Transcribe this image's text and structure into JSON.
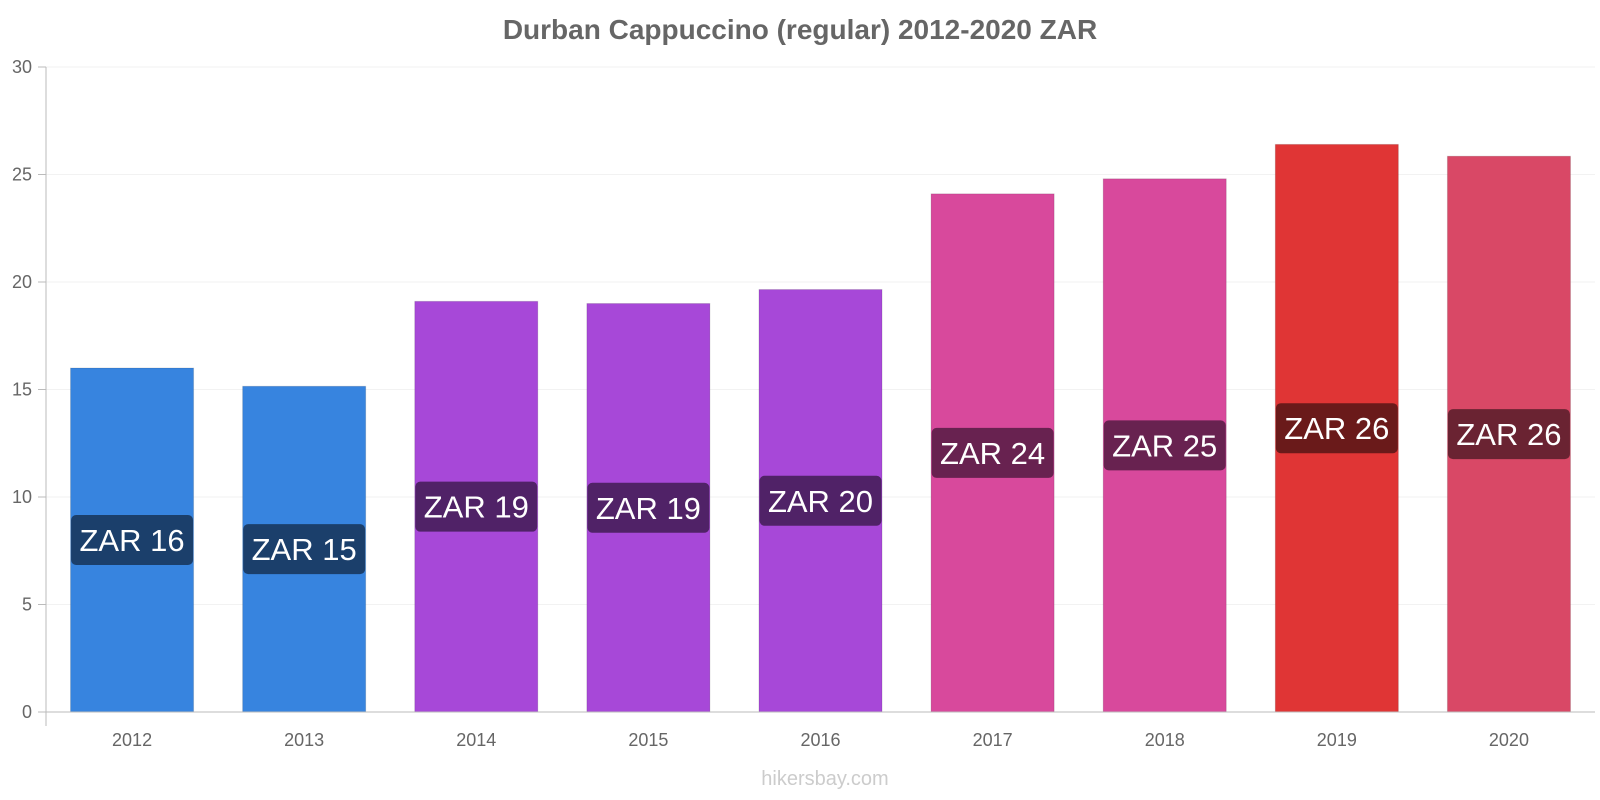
{
  "chart_data": {
    "type": "bar",
    "title": "Durban Cappuccino (regular) 2012-2020 ZAR",
    "xlabel": "",
    "ylabel": "",
    "categories": [
      "2012",
      "2013",
      "2014",
      "2015",
      "2016",
      "2017",
      "2018",
      "2019",
      "2020"
    ],
    "values": [
      16.0,
      15.15,
      19.1,
      19.0,
      19.65,
      24.1,
      24.8,
      26.4,
      25.85
    ],
    "data_labels": [
      "ZAR 16",
      "ZAR 15",
      "ZAR 19",
      "ZAR 19",
      "ZAR 20",
      "ZAR 24",
      "ZAR 25",
      "ZAR 26",
      "ZAR 26"
    ],
    "ylim": [
      0,
      30
    ],
    "yticks": [
      "0",
      "5",
      "10",
      "15",
      "20",
      "25",
      "30"
    ],
    "grid": true,
    "legend": "none",
    "bar_colors": [
      "#3784df",
      "#3784df",
      "#a748d8",
      "#a748d8",
      "#a748d8",
      "#d8499c",
      "#d8499c",
      "#e03535",
      "#d94866"
    ],
    "label_box_colors": [
      "#1b3f6b",
      "#1b3f6b",
      "#502267",
      "#502267",
      "#502267",
      "#682250",
      "#682250",
      "#6a1a1a",
      "#6a2332"
    ]
  },
  "watermark": "hikersbay.com"
}
